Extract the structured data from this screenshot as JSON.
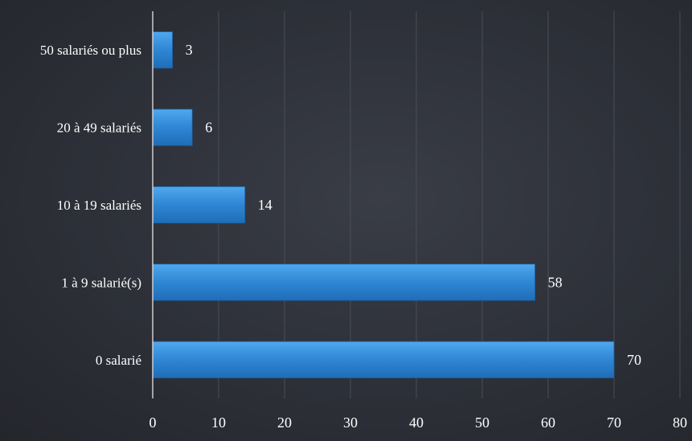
{
  "chart_data": {
    "type": "bar",
    "orientation": "horizontal",
    "categories": [
      "0 salarié",
      "1 à 9 salarié(s)",
      "10 à 19 salariés",
      "20 à 49 salariés",
      "50 salariés ou plus"
    ],
    "values": [
      70,
      58,
      14,
      6,
      3
    ],
    "data_labels": [
      "70",
      "58",
      "14",
      "6",
      "3"
    ],
    "xlim": [
      0,
      80
    ],
    "xticks": [
      0,
      10,
      20,
      30,
      40,
      50,
      60,
      70,
      80
    ],
    "grid": true,
    "legend": "none",
    "colors": {
      "bar": "#2f86d4",
      "bar_highlight": "#4aa3ec",
      "background": "#2d3038",
      "text": "#ffffff"
    }
  }
}
